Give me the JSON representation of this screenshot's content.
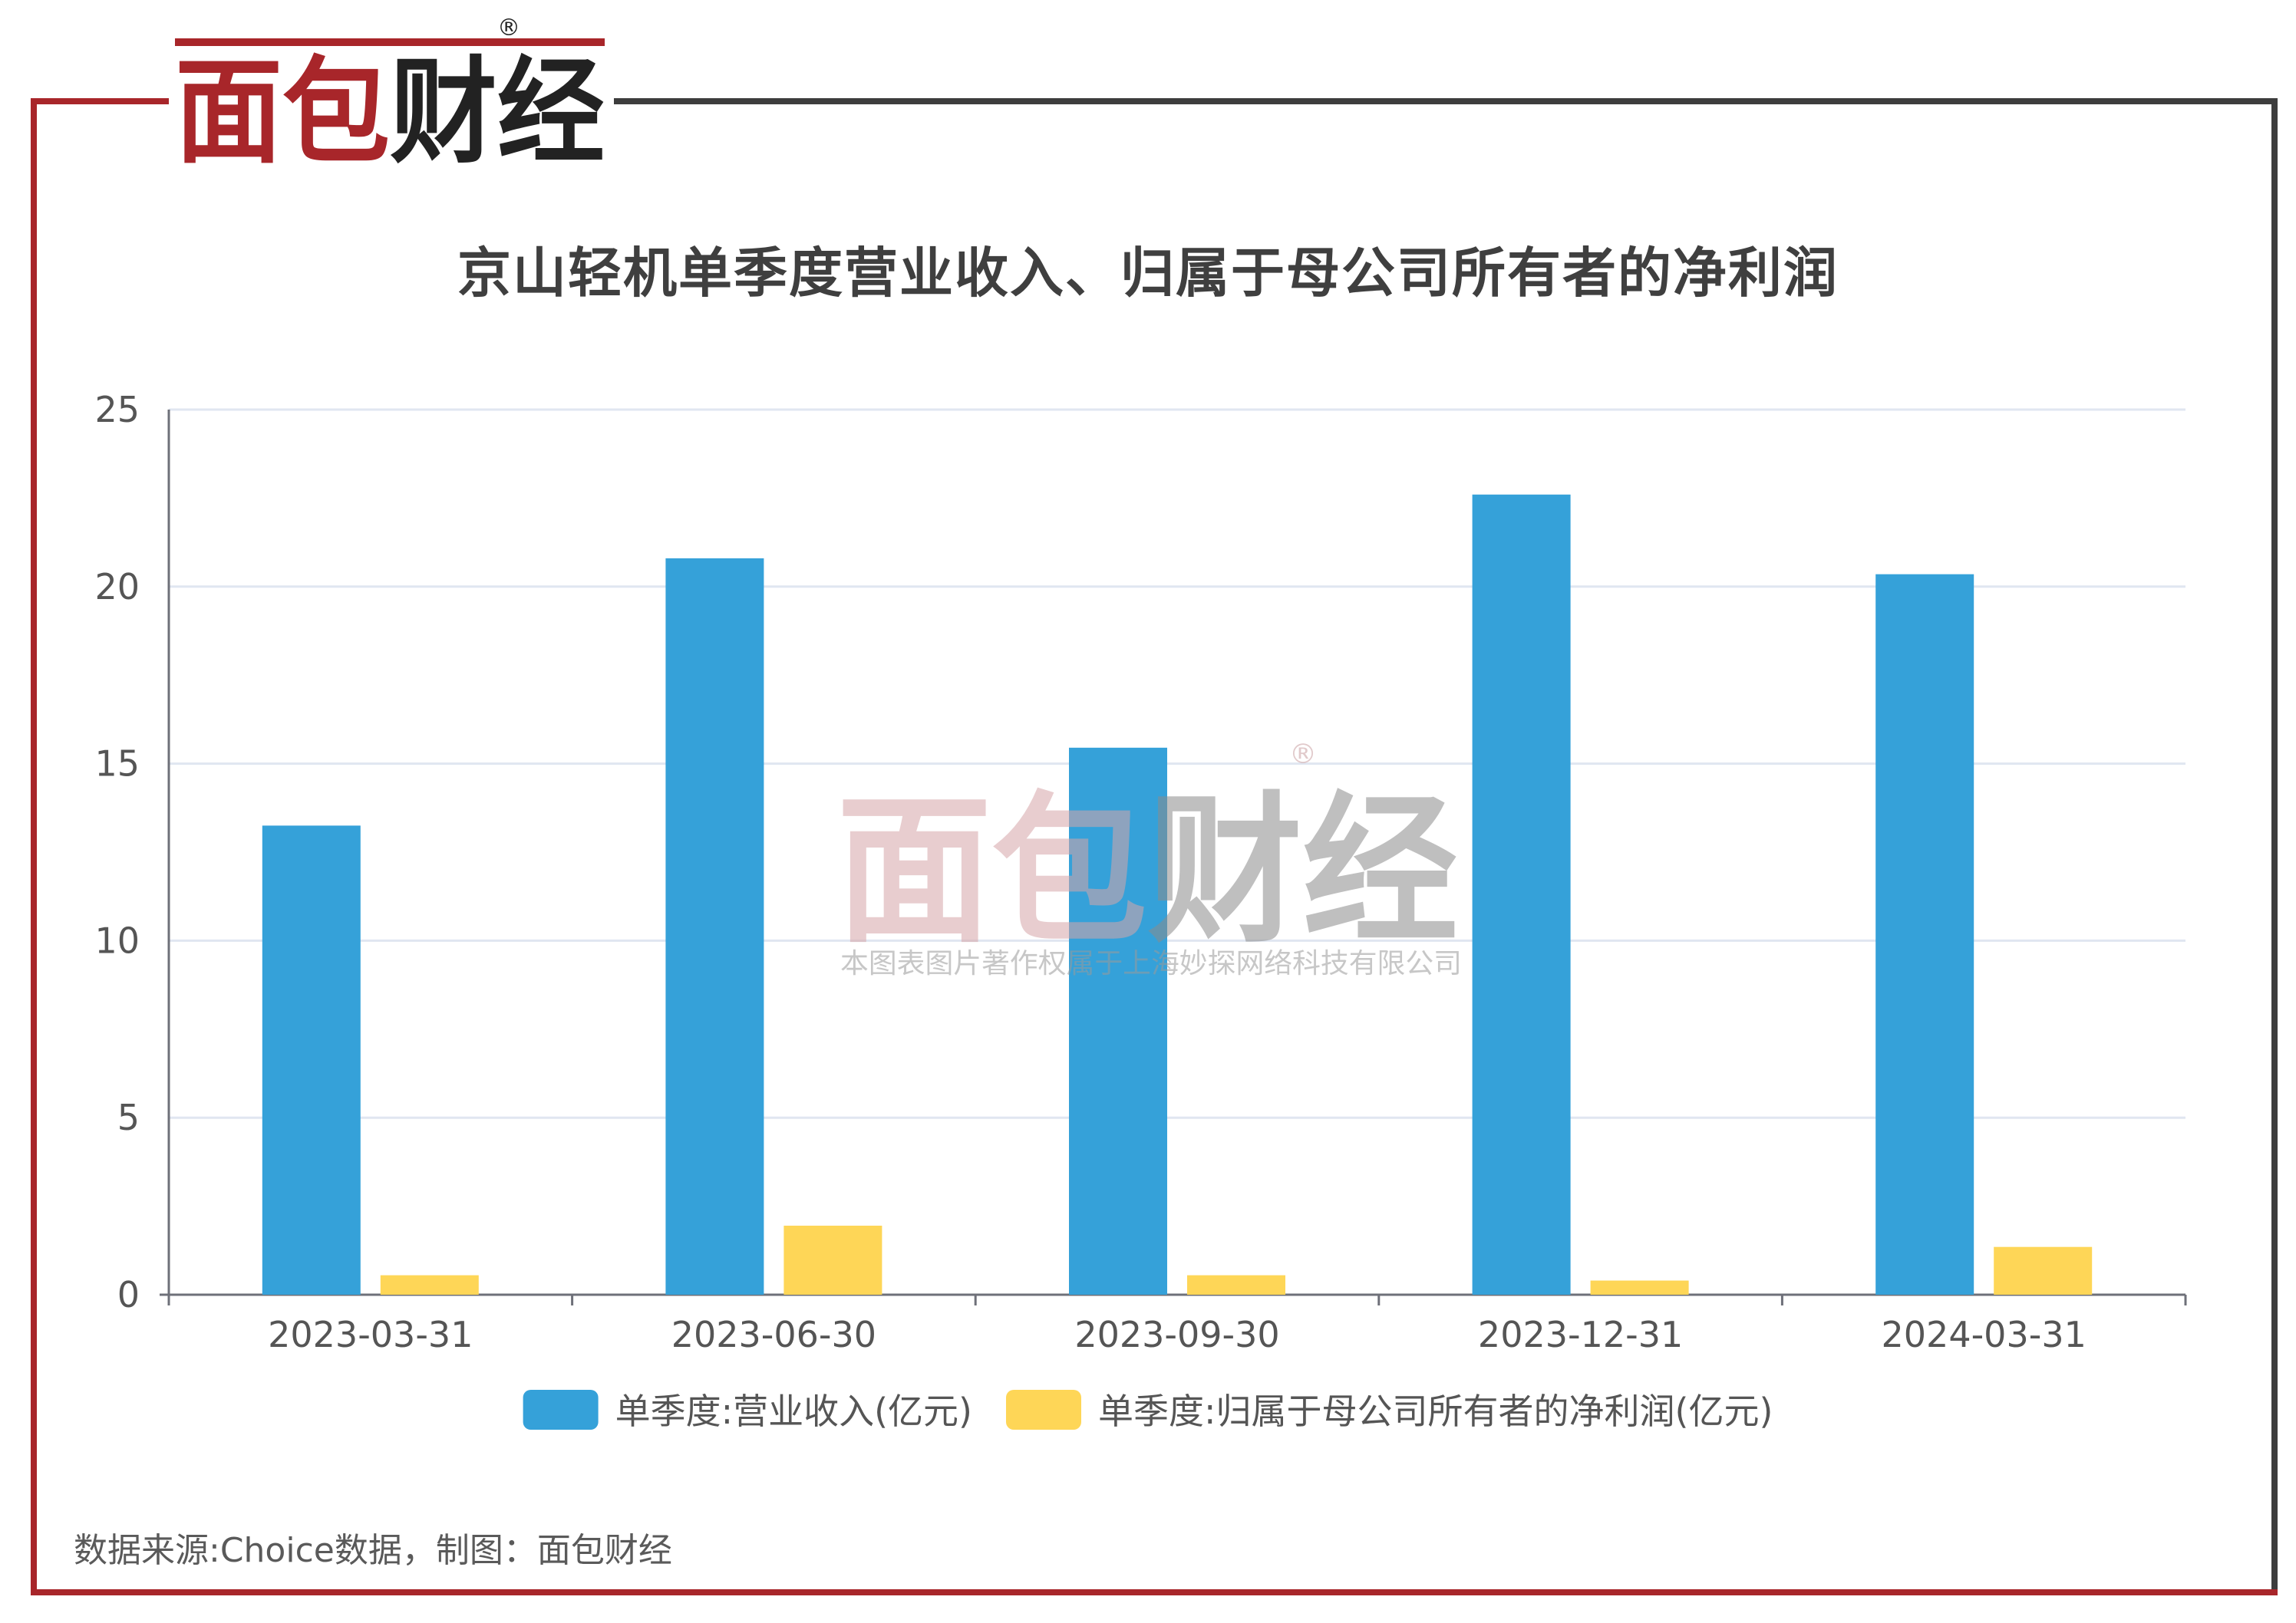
{
  "brand": {
    "logo_text": "面包财经",
    "registered_mark": "®",
    "colors": {
      "red": "#a8262a",
      "dark": "#222222"
    }
  },
  "watermark": {
    "logo_text": "面包财经",
    "registered_mark": "®",
    "copyright": "本图表图片著作权属于上海妙探网络科技有限公司"
  },
  "footer": {
    "source": "数据来源:Choice数据，制图：面包财经"
  },
  "chart_data": {
    "type": "bar",
    "title": "京山轻机单季度营业收入、归属于母公司所有者的净利润",
    "categories": [
      "2023-03-31",
      "2023-06-30",
      "2023-09-30",
      "2023-12-31",
      "2024-03-31"
    ],
    "series": [
      {
        "name": "单季度:营业收入(亿元)",
        "color": "#35a1d9",
        "values": [
          13.25,
          20.8,
          15.45,
          22.6,
          20.35
        ]
      },
      {
        "name": "单季度:归属于母公司所有者的净利润(亿元)",
        "color": "#fed657",
        "values": [
          0.55,
          1.95,
          0.55,
          0.4,
          1.35
        ]
      }
    ],
    "ylim": [
      0,
      25
    ],
    "yticks": [
      "0",
      "5",
      "10",
      "15",
      "20",
      "25"
    ],
    "xlabel": "",
    "ylabel": "",
    "grid": true,
    "legend_position": "bottom"
  }
}
